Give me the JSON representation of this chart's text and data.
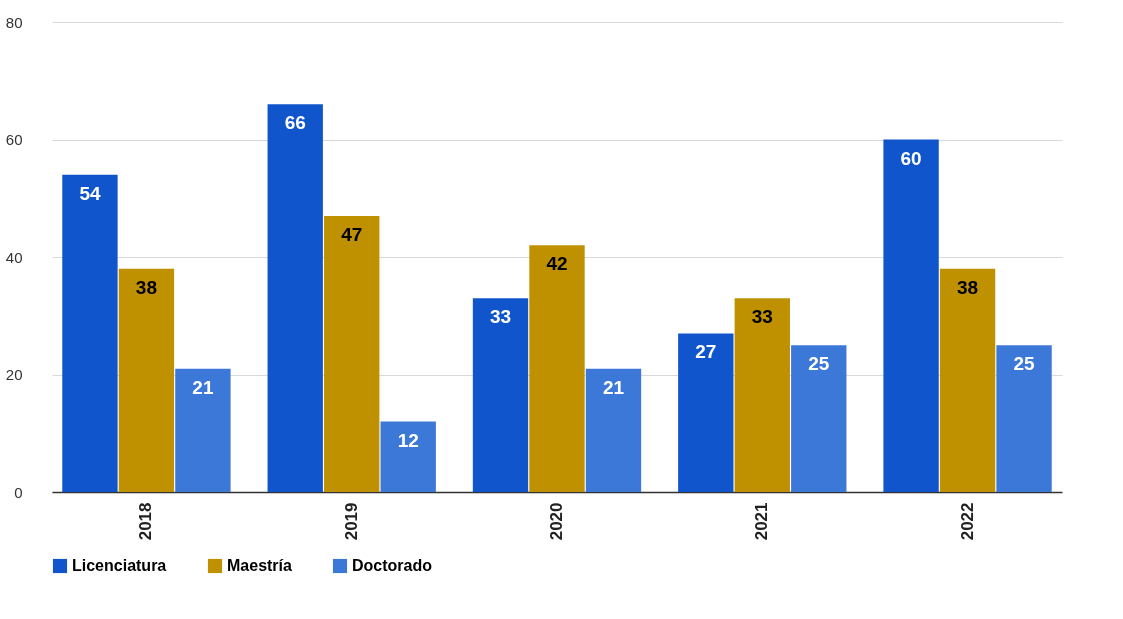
{
  "chart_data": {
    "type": "bar",
    "categories": [
      "2018",
      "2019",
      "2020",
      "2021",
      "2022"
    ],
    "series": [
      {
        "name": "Licenciatura",
        "color": "#1155cc",
        "values": [
          54,
          66,
          33,
          27,
          60
        ]
      },
      {
        "name": "Maestría",
        "color": "#bf9000",
        "values": [
          38,
          47,
          42,
          33,
          38
        ]
      },
      {
        "name": "Doctorado",
        "color": "#3c78d8",
        "values": [
          21,
          12,
          21,
          25,
          25
        ]
      }
    ],
    "ylim": [
      0,
      80
    ],
    "yticks": [
      0,
      20,
      40,
      60,
      80
    ],
    "grid": "y",
    "legend": "bottom",
    "data_labels": true
  }
}
